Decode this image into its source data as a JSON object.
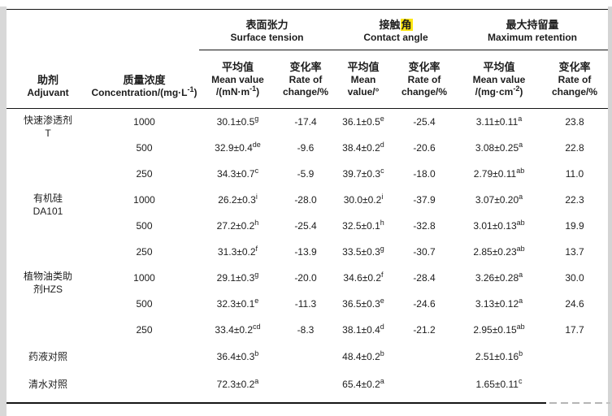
{
  "colors": {
    "highlight": "#ffe712",
    "text": "#1d1d1d",
    "rule": "#151515",
    "edge_strip": "#d8d8d8",
    "watermark_dash": "#b5b5b5"
  },
  "header": {
    "adjuvant": {
      "zh": "助剂",
      "en": "Adjuvant"
    },
    "concentration": {
      "zh": "质量浓度",
      "en_pre": "Concentration/(mg·L",
      "en_sup": "-1",
      "en_post": ")"
    },
    "groups": [
      {
        "zh": "表面张力",
        "en": "Surface tension"
      },
      {
        "zh_pre": "接触",
        "zh_hl": "角",
        "en": "Contact angle"
      },
      {
        "zh": "最大持留量",
        "en": "Maximum retention"
      }
    ],
    "sub": [
      {
        "zh": "平均值",
        "l1": "Mean value",
        "l2_pre": "/(mN·m",
        "l2_sup": "-1",
        "l2_post": ")"
      },
      {
        "zh": "变化率",
        "l1": "Rate of",
        "l2": "change/%"
      },
      {
        "zh": "平均值",
        "l1": "Mean",
        "l2": "value/°"
      },
      {
        "zh": "变化率",
        "l1": "Rate of",
        "l2": "change/%"
      },
      {
        "zh": "平均值",
        "l1": "Mean value",
        "l2_pre": "/(mg·cm",
        "l2_sup": "-2",
        "l2_post": ")"
      },
      {
        "zh": "变化率",
        "l1": "Rate of",
        "l2": "change/%"
      }
    ]
  },
  "rows": [
    {
      "group": [
        "快速渗透剂",
        "T"
      ],
      "span": 3,
      "conc": "1000",
      "st": [
        "30.1±0.5",
        "g"
      ],
      "str": "-17.4",
      "ca": [
        "36.1±0.5",
        "e"
      ],
      "car": "-25.4",
      "mr": [
        "3.11±0.11",
        "a"
      ],
      "mrr": "23.8"
    },
    {
      "conc": "500",
      "st": [
        "32.9±0.4",
        "de"
      ],
      "str": "-9.6",
      "ca": [
        "38.4±0.2",
        "d"
      ],
      "car": "-20.6",
      "mr": [
        "3.08±0.25",
        "a"
      ],
      "mrr": "22.8"
    },
    {
      "conc": "250",
      "st": [
        "34.3±0.7",
        "c"
      ],
      "str": "-5.9",
      "ca": [
        "39.7±0.3",
        "c"
      ],
      "car": "-18.0",
      "mr": [
        "2.79±0.11",
        "ab"
      ],
      "mrr": "11.0"
    },
    {
      "group": [
        "有机硅",
        "DA101"
      ],
      "span": 3,
      "conc": "1000",
      "st": [
        "26.2±0.3",
        "i"
      ],
      "str": "-28.0",
      "ca": [
        "30.0±0.2",
        "i"
      ],
      "car": "-37.9",
      "mr": [
        "3.07±0.20",
        "a"
      ],
      "mrr": "22.3"
    },
    {
      "conc": "500",
      "st": [
        "27.2±0.2",
        "h"
      ],
      "str": "-25.4",
      "ca": [
        "32.5±0.1",
        "h"
      ],
      "car": "-32.8",
      "mr": [
        "3.01±0.13",
        "ab"
      ],
      "mrr": "19.9"
    },
    {
      "conc": "250",
      "st": [
        "31.3±0.2",
        "f"
      ],
      "str": "-13.9",
      "ca": [
        "33.5±0.3",
        "g"
      ],
      "car": "-30.7",
      "mr": [
        "2.85±0.23",
        "ab"
      ],
      "mrr": "13.7"
    },
    {
      "group": [
        "植物油类助",
        "剂HZS"
      ],
      "span": 3,
      "conc": "1000",
      "st": [
        "29.1±0.3",
        "g"
      ],
      "str": "-20.0",
      "ca": [
        "34.6±0.2",
        "f"
      ],
      "car": "-28.4",
      "mr": [
        "3.26±0.28",
        "a"
      ],
      "mrr": "30.0"
    },
    {
      "conc": "500",
      "st": [
        "32.3±0.1",
        "e"
      ],
      "str": "-11.3",
      "ca": [
        "36.5±0.3",
        "e"
      ],
      "car": "-24.6",
      "mr": [
        "3.13±0.12",
        "a"
      ],
      "mrr": "24.6"
    },
    {
      "conc": "250",
      "st": [
        "33.4±0.2",
        "cd"
      ],
      "str": "-8.3",
      "ca": [
        "38.1±0.4",
        "d"
      ],
      "car": "-21.2",
      "mr": [
        "2.95±0.15",
        "ab"
      ],
      "mrr": "17.7"
    },
    {
      "group": [
        "药液对照"
      ],
      "span": 1,
      "conc": "",
      "st": [
        "36.4±0.3",
        "b"
      ],
      "str": "",
      "ca": [
        "48.4±0.2",
        "b"
      ],
      "car": "",
      "mr": [
        "2.51±0.16",
        "b"
      ],
      "mrr": ""
    },
    {
      "group": [
        "清水对照"
      ],
      "span": 1,
      "conc": "",
      "st": [
        "72.3±0.2",
        "a"
      ],
      "str": "",
      "ca": [
        "65.4±0.2",
        "a"
      ],
      "car": "",
      "mr": [
        "1.65±0.11",
        "c"
      ],
      "mrr": ""
    }
  ]
}
